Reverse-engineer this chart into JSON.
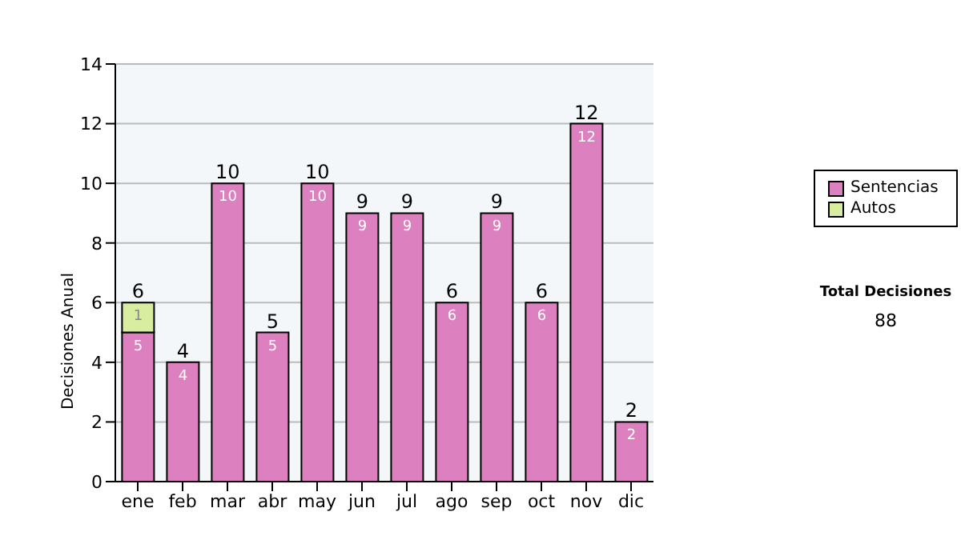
{
  "chart_data": {
    "type": "bar",
    "stacked": true,
    "ylabel": "Decisiones Anual",
    "categories": [
      "ene",
      "feb",
      "mar",
      "abr",
      "may",
      "jun",
      "jul",
      "ago",
      "sep",
      "oct",
      "nov",
      "dic"
    ],
    "series": [
      {
        "name": "Sentencias",
        "color": "#dd80c0",
        "values": [
          5,
          4,
          10,
          5,
          10,
          9,
          9,
          6,
          9,
          6,
          12,
          2
        ],
        "value_labels": [
          "5",
          "4",
          "10",
          "5",
          "10",
          "9",
          "9",
          "6",
          "9",
          "6",
          "12",
          "2"
        ]
      },
      {
        "name": "Autos",
        "color": "#d8eda0",
        "values": [
          1,
          null,
          null,
          null,
          null,
          null,
          null,
          null,
          null,
          null,
          null,
          null
        ],
        "value_labels": [
          "1",
          null,
          null,
          null,
          null,
          null,
          null,
          null,
          null,
          null,
          null,
          null
        ]
      }
    ],
    "totals": [
      "6",
      "4",
      "10",
      "5",
      "10",
      "9",
      "9",
      "6",
      "9",
      "6",
      "12",
      "2"
    ],
    "ylim": [
      0,
      14
    ],
    "yticks": [
      0,
      2,
      4,
      6,
      8,
      10,
      12,
      14
    ],
    "grid": "y",
    "legend": "right",
    "annotations": [
      "Total Decisiones",
      "88"
    ]
  }
}
